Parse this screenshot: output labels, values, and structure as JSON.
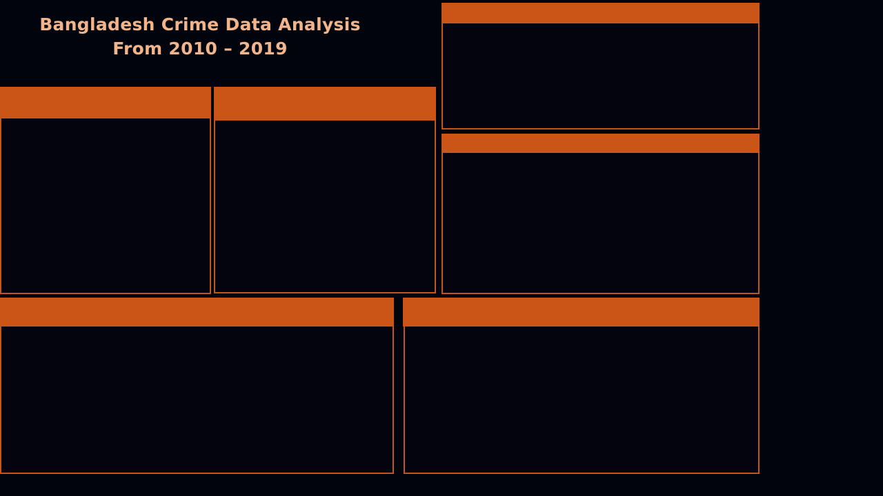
{
  "dashboard": {
    "title_line1": "Bangladesh Crime Data Analysis",
    "title_line2": "From 2010 – 2019"
  },
  "colors": {
    "background": "#01040c",
    "header_fill": "#cb5516",
    "panel_border": "#c4561b",
    "title_text": "#f2b48a"
  },
  "panels": [
    {
      "id": "panel-top-right",
      "header": ""
    },
    {
      "id": "panel-mid-left",
      "header": ""
    },
    {
      "id": "panel-mid-center",
      "header": ""
    },
    {
      "id": "panel-mid-right",
      "header": ""
    },
    {
      "id": "panel-bottom-left",
      "header": ""
    },
    {
      "id": "panel-bottom-right",
      "header": ""
    }
  ]
}
